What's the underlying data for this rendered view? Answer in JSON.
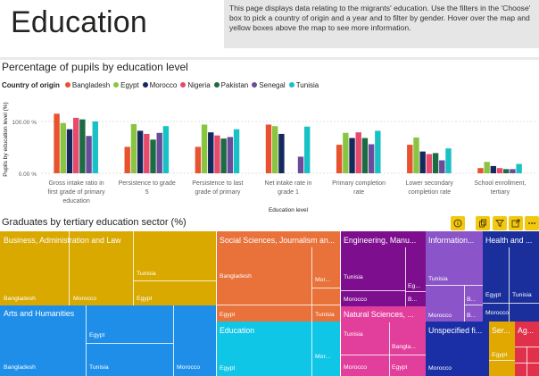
{
  "header": {
    "title": "Education",
    "info": "This page displays data relating to the migrants' education. Use the filters in the 'Choose' box to pick a country of origin and a year and to filter by gender. Hover over the map and yellow boxes above the map to see more information."
  },
  "chart": {
    "title": "Percentage of pupils by education level",
    "legend_title": "Country of origin"
  },
  "chart_data": {
    "type": "bar",
    "title": "Percentage of pupils by education level",
    "xlabel": "Education level",
    "ylabel": "Pupils by education level (%)",
    "yticks": [
      "0.00 %",
      "100.00 %"
    ],
    "ylim": [
      0,
      125
    ],
    "legend_position": "top-left",
    "categories": [
      "Gross intake ratio in first grade of primary education",
      "Persistence to grade 5",
      "Persistence to last grade of primary",
      "Net intake rate in grade 1",
      "Primary completion rate",
      "Lower secondary completion rate",
      "School enrollment, tertiary"
    ],
    "category_lines": [
      [
        "Gross intake ratio in",
        "first grade of primary",
        "education"
      ],
      [
        "Persistence to grade",
        "5"
      ],
      [
        "Persistence to last",
        "grade of primary"
      ],
      [
        "Net intake rate in",
        "grade 1"
      ],
      [
        "Primary completion",
        "rate"
      ],
      [
        "Lower secondary",
        "completion rate"
      ],
      [
        "School enrollment,",
        "tertiary"
      ]
    ],
    "series": [
      {
        "name": "Bangladesh",
        "color": "#e8522e",
        "values": [
          115,
          51,
          51,
          94,
          55,
          55,
          10
        ]
      },
      {
        "name": "Egypt",
        "color": "#8ac542",
        "values": [
          97,
          95,
          94,
          91,
          78,
          69,
          22
        ]
      },
      {
        "name": "Morocco",
        "color": "#14295c",
        "values": [
          85,
          82,
          79,
          76,
          68,
          42,
          14
        ]
      },
      {
        "name": "Nigeria",
        "color": "#e84a6b",
        "values": [
          107,
          76,
          73,
          0,
          79,
          37,
          10
        ]
      },
      {
        "name": "Pakistan",
        "color": "#1d6b43",
        "values": [
          104,
          65,
          67,
          0,
          68,
          39,
          8
        ]
      },
      {
        "name": "Senegal",
        "color": "#6b4c9a",
        "values": [
          72,
          78,
          70,
          32,
          56,
          25,
          8
        ]
      },
      {
        "name": "Tunisia",
        "color": "#18c1c4",
        "values": [
          100,
          91,
          85,
          90,
          82,
          48,
          18
        ]
      }
    ]
  },
  "treemap": {
    "title": "Graduates by tertiary education sector (%)",
    "sectors": [
      {
        "id": "business",
        "label": "Business, Administration and Law",
        "color": "#d9a900",
        "cells": [
          {
            "label": "Tunisia",
            "lx": 153,
            "ly": 44
          },
          {
            "label": "Bangladesh",
            "lx": 4,
            "ly": 72
          },
          {
            "label": "Morocco",
            "lx": 82,
            "ly": 72
          },
          {
            "label": "Egypt",
            "lx": 153,
            "ly": 72
          }
        ]
      },
      {
        "id": "arts",
        "label": "Arts and Humanities",
        "color": "#1e8ee8",
        "cells": [
          {
            "label": "Egypt",
            "lx": 100,
            "ly": 30
          },
          {
            "label": "Bangladesh",
            "lx": 4,
            "ly": 66
          },
          {
            "label": "Tunisia",
            "lx": 100,
            "ly": 66
          },
          {
            "label": "Morocco",
            "lx": 198,
            "ly": 66
          }
        ]
      },
      {
        "id": "social",
        "label": "Social Sciences, Journalism an...",
        "color": "#e8723a",
        "cells": [
          {
            "label": "Bangladesh",
            "lx": 3,
            "ly": 45
          },
          {
            "label": "Mor...",
            "lx": 110,
            "ly": 48
          },
          {
            "label": "Egypt",
            "lx": 3,
            "ly": 87
          },
          {
            "label": "Tunisia",
            "lx": 110,
            "ly": 87
          }
        ]
      },
      {
        "id": "education",
        "label": "Education",
        "color": "#0fc6e6",
        "cells": [
          {
            "label": "Mor...",
            "lx": 110,
            "ly": 36
          },
          {
            "label": "Egypt",
            "lx": 3,
            "ly": 46
          }
        ]
      },
      {
        "id": "engineering",
        "label": "Engineering, Manu...",
        "color": "#7d0e8e",
        "cells": [
          {
            "label": "Tunisia",
            "lx": 3,
            "ly": 46
          },
          {
            "label": "Eg...",
            "lx": 75,
            "ly": 57
          },
          {
            "label": "Morocco",
            "lx": 3,
            "ly": 72
          },
          {
            "label": "B...",
            "lx": 75,
            "ly": 72
          }
        ]
      },
      {
        "id": "natural",
        "label": "Natural Sciences, ...",
        "color": "#e23f9c",
        "cells": [
          {
            "label": "Tunisia",
            "lx": 3,
            "ly": 28
          },
          {
            "label": "Bangla...",
            "lx": 57,
            "ly": 40
          },
          {
            "label": "Morocco",
            "lx": 3,
            "ly": 62
          },
          {
            "label": "Egypt",
            "lx": 57,
            "ly": 62
          }
        ]
      },
      {
        "id": "information",
        "label": "Information...",
        "color": "#8b55c9",
        "cells": [
          {
            "label": "Tunisia",
            "lx": 3,
            "ly": 47
          },
          {
            "label": "B...",
            "lx": 46,
            "ly": 72
          },
          {
            "label": "Morocco",
            "lx": 3,
            "ly": 88
          },
          {
            "label": "B...",
            "lx": 46,
            "ly": 88
          }
        ]
      },
      {
        "id": "unspecified",
        "label": "Unspecified fi...",
        "color": "#1a2fa6",
        "cells": [
          {
            "label": "Morocco",
            "lx": 3,
            "ly": 46
          }
        ]
      },
      {
        "id": "health",
        "label": "Health and ...",
        "color": "#1b2f9c",
        "cells": [
          {
            "label": "Egypt",
            "lx": 3,
            "ly": 64
          },
          {
            "label": "Tunisia",
            "lx": 32,
            "ly": 64
          },
          {
            "label": "Morocco",
            "lx": 3,
            "ly": 87
          }
        ]
      },
      {
        "id": "services",
        "label": "Ser...",
        "color": "#e0a800",
        "cells": [
          {
            "label": "Egypt",
            "lx": 3,
            "ly": 30
          }
        ]
      },
      {
        "id": "agriculture",
        "label": "Ag...",
        "color": "#e0304b",
        "cells": []
      }
    ]
  }
}
